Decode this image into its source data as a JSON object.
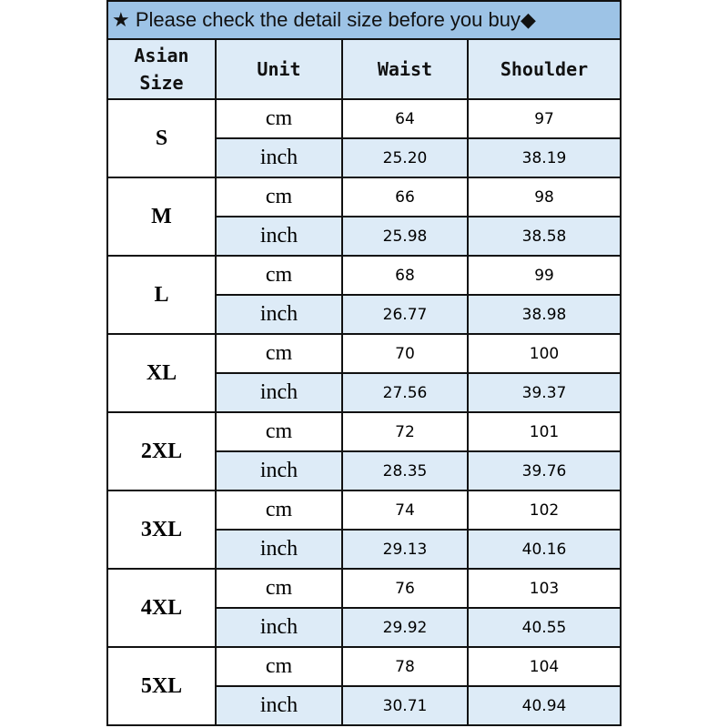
{
  "title": {
    "icon_left": "star-icon",
    "text": "★ Please check the detail size before you buy◆"
  },
  "colors": {
    "title_bg": "#9dc3e6",
    "header_bg": "#ddebf7",
    "inch_row_bg": "#ddebf7"
  },
  "headers": [
    "Asian Size",
    "Unit",
    "Waist",
    "Shoulder"
  ],
  "rows": [
    {
      "size": "S",
      "cm": {
        "unit": "cm",
        "waist": "64",
        "shoulder": "97"
      },
      "inch": {
        "unit": "inch",
        "waist": "25.20",
        "shoulder": "38.19"
      }
    },
    {
      "size": "M",
      "cm": {
        "unit": "cm",
        "waist": "66",
        "shoulder": "98"
      },
      "inch": {
        "unit": "inch",
        "waist": "25.98",
        "shoulder": "38.58"
      }
    },
    {
      "size": "L",
      "cm": {
        "unit": "cm",
        "waist": "68",
        "shoulder": "99"
      },
      "inch": {
        "unit": "inch",
        "waist": "26.77",
        "shoulder": "38.98"
      }
    },
    {
      "size": "XL",
      "cm": {
        "unit": "cm",
        "waist": "70",
        "shoulder": "100"
      },
      "inch": {
        "unit": "inch",
        "waist": "27.56",
        "shoulder": "39.37"
      }
    },
    {
      "size": "2XL",
      "cm": {
        "unit": "cm",
        "waist": "72",
        "shoulder": "101"
      },
      "inch": {
        "unit": "inch",
        "waist": "28.35",
        "shoulder": "39.76"
      }
    },
    {
      "size": "3XL",
      "cm": {
        "unit": "cm",
        "waist": "74",
        "shoulder": "102"
      },
      "inch": {
        "unit": "inch",
        "waist": "29.13",
        "shoulder": "40.16"
      }
    },
    {
      "size": "4XL",
      "cm": {
        "unit": "cm",
        "waist": "76",
        "shoulder": "103"
      },
      "inch": {
        "unit": "inch",
        "waist": "29.92",
        "shoulder": "40.55"
      }
    },
    {
      "size": "5XL",
      "cm": {
        "unit": "cm",
        "waist": "78",
        "shoulder": "104"
      },
      "inch": {
        "unit": "inch",
        "waist": "30.71",
        "shoulder": "40.94"
      }
    }
  ]
}
